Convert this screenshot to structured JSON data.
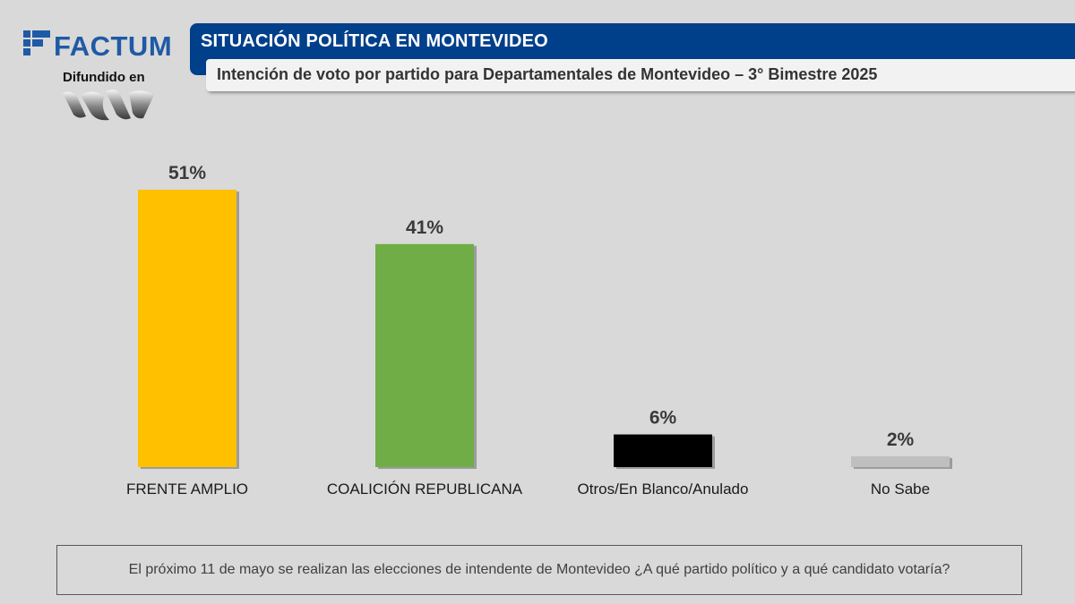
{
  "brand": {
    "logo_text": "FACTUM",
    "diffused_label": "Difundido en",
    "accent_color": "#1f5aa6"
  },
  "header": {
    "title": "SITUACIÓN POLÍTICA EN MONTEVIDEO",
    "subtitle": "Intención de voto por partido para Departamentales de Montevideo – 3° Bimestre 2025",
    "title_bg": "#003f8a"
  },
  "chart_data": {
    "type": "bar",
    "categories": [
      "FRENTE AMPLIO",
      "COALICIÓN REPUBLICANA",
      "Otros/En Blanco/Anulado",
      "No Sabe"
    ],
    "values": [
      51,
      41,
      6,
      2
    ],
    "value_labels": [
      "51%",
      "41%",
      "6%",
      "2%"
    ],
    "colors": [
      "#ffc000",
      "#70ad47",
      "#000000",
      "#bfbfbf"
    ],
    "ylim": [
      0,
      51
    ],
    "grid": false,
    "legend": "none"
  },
  "footer": {
    "question": "El próximo 11 de mayo se realizan las elecciones de intendente de Montevideo ¿A qué partido político y a qué candidato votaría?"
  }
}
